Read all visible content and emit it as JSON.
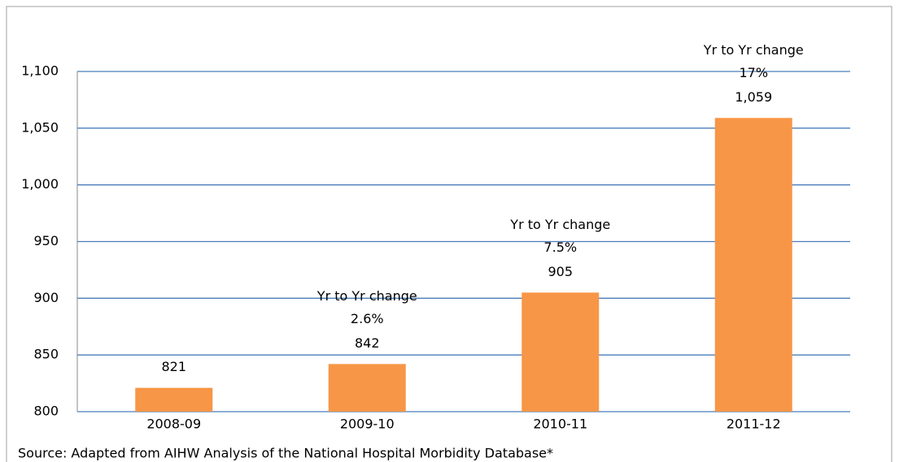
{
  "chart_data": {
    "type": "bar",
    "categories": [
      "2008-09",
      "2009-10",
      "2010-11",
      "2011-12"
    ],
    "values": [
      821,
      842,
      905,
      1059
    ],
    "value_labels": [
      "821",
      "842",
      "905",
      "1,059"
    ],
    "annotations": [
      null,
      {
        "text": "Yr to Yr change",
        "change": "2.6%"
      },
      {
        "text": "Yr to Yr change",
        "change": "7.5%"
      },
      {
        "text": "Yr to Yr change",
        "change": "17%"
      }
    ],
    "color": "#f79646",
    "grid_color": "#4a7ebb",
    "ylim": [
      800,
      1100
    ],
    "yticks": [
      800,
      850,
      900,
      950,
      {
        "value": 1000,
        "label": "1,000"
      },
      {
        "value": 1050,
        "label": "1,050"
      },
      {
        "value": 1100,
        "label": "1,100"
      }
    ],
    "grid": true,
    "source": "Source: Adapted from AIHW Analysis of the National Hospital Morbidity Database*"
  }
}
